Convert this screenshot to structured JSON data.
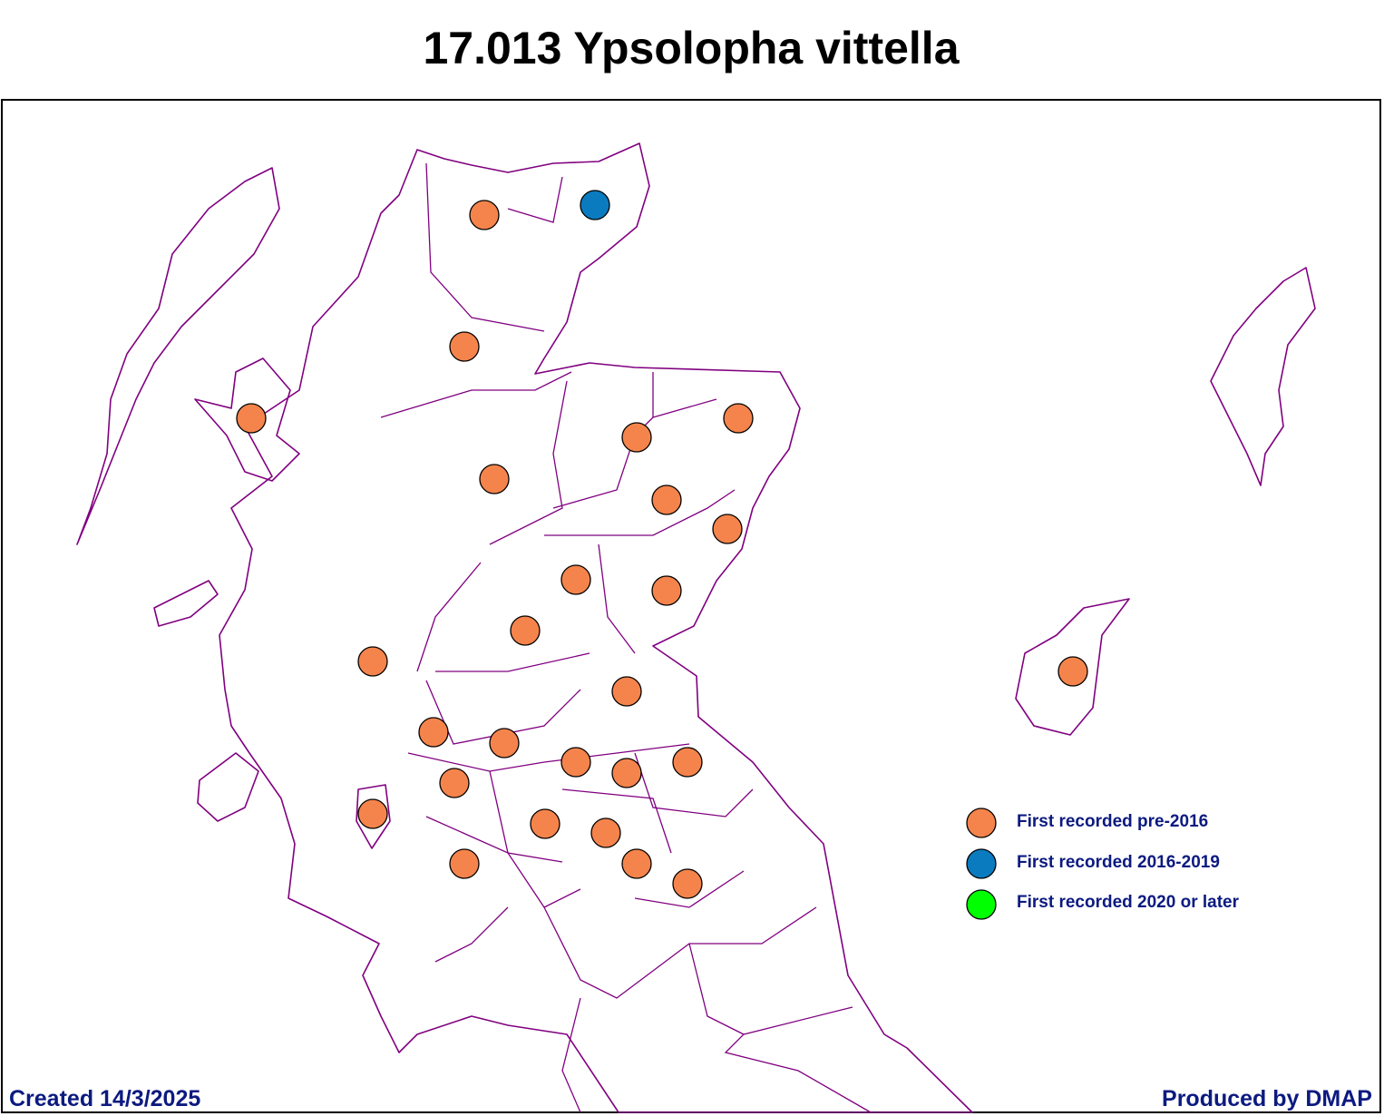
{
  "title": "17.013 Ypsolopha vittella",
  "legend": [
    {
      "label": "First recorded pre-2016",
      "color": "#f5844c"
    },
    {
      "label": "First recorded 2016-2019",
      "color": "#0b7bbf"
    },
    {
      "label": "First recorded 2020 or later",
      "color": "#00ff00"
    }
  ],
  "footer": {
    "created": "Created 14/3/2025",
    "produced": "Produced by DMAP"
  }
}
